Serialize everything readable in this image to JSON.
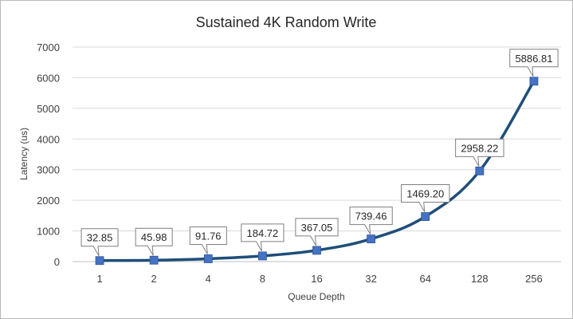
{
  "chart_data": {
    "type": "line",
    "title": "Sustained 4K Random Write",
    "xlabel": "Queue Depth",
    "ylabel": "Latency (us)",
    "categories": [
      "1",
      "2",
      "4",
      "8",
      "16",
      "32",
      "64",
      "128",
      "256"
    ],
    "series": [
      {
        "values": [
          32.85,
          45.98,
          91.76,
          184.72,
          367.05,
          739.46,
          1469.2,
          2958.22,
          5886.81
        ],
        "data_labels": [
          "32.85",
          "45.98",
          "91.76",
          "184.72",
          "367.05",
          "739.46",
          "1469.20",
          "2958.22",
          "5886.81"
        ]
      }
    ],
    "ylim": [
      0,
      7000
    ],
    "yticks": [
      0,
      1000,
      2000,
      3000,
      4000,
      5000,
      6000,
      7000
    ],
    "grid": true,
    "legend": "none",
    "colors": {
      "line": "#1f4e79",
      "marker": "#4472c4",
      "grid": "#d9d9d9",
      "text": "#404040"
    }
  }
}
